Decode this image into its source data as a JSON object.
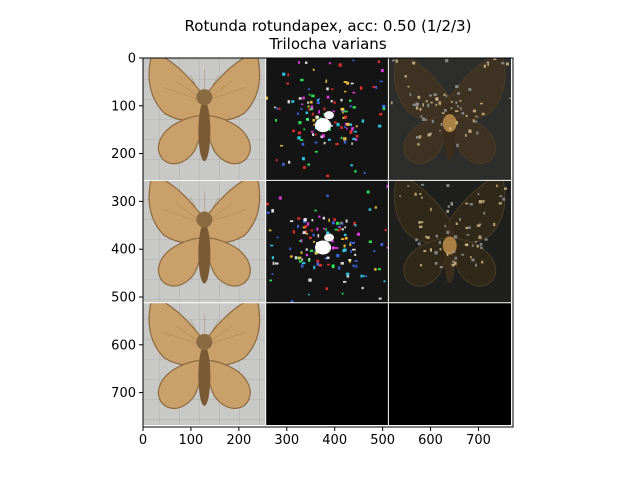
{
  "title": {
    "line1": "Rotunda rotundapex, acc: 0.50 (1/2/3)",
    "line2": "Trilocha varians"
  },
  "chart_data": {
    "type": "image_grid",
    "title": "Rotunda rotundapex, acc: 0.50 (1/2/3)\nTrilocha varians",
    "xlim": [
      0,
      772
    ],
    "ylim": [
      772,
      0
    ],
    "x_ticks": [
      0,
      100,
      200,
      300,
      400,
      500,
      600,
      700
    ],
    "y_ticks": [
      0,
      100,
      200,
      300,
      400,
      500,
      600,
      700
    ],
    "grid": false,
    "tile_size": 256,
    "rows": 3,
    "cols": 3,
    "panels": [
      {
        "row": 0,
        "col": 0,
        "content": "moth-photo",
        "scene": "moth-light"
      },
      {
        "row": 0,
        "col": 1,
        "content": "saliency-map",
        "scene": "saliency"
      },
      {
        "row": 0,
        "col": 2,
        "content": "masked-overlay",
        "scene": "overlay-dim"
      },
      {
        "row": 1,
        "col": 0,
        "content": "moth-photo",
        "scene": "moth-light"
      },
      {
        "row": 1,
        "col": 1,
        "content": "saliency-map",
        "scene": "saliency"
      },
      {
        "row": 1,
        "col": 2,
        "content": "masked-overlay",
        "scene": "overlay-dark"
      },
      {
        "row": 2,
        "col": 0,
        "content": "moth-photo",
        "scene": "moth-light"
      },
      {
        "row": 2,
        "col": 1,
        "content": "blank",
        "scene": "blank"
      },
      {
        "row": 2,
        "col": 2,
        "content": "blank",
        "scene": "blank"
      }
    ]
  },
  "colors": {
    "frame": "#000000",
    "separator": "#ffffff",
    "photo_bg": "#c9cac8",
    "dark_bg": "#141414",
    "overlay_bg": "#2d2d2b",
    "moth_wing": "#c9a06a",
    "moth_wing_edge": "#8d6a3f",
    "moth_body": "#7a5a35"
  }
}
